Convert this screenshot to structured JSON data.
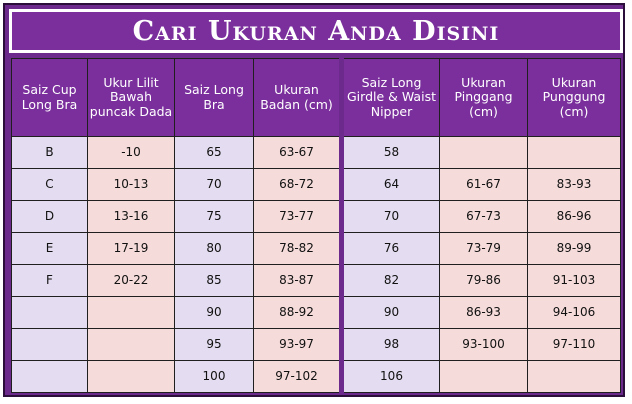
{
  "title": "Cari Ukuran Anda Disini",
  "colors": {
    "header_purple": "#7a2f9c",
    "frame_purple": "#6b2a8c",
    "lavender": "#e4dcf0",
    "pink": "#f5dcda"
  },
  "headers": [
    "Saiz Cup Long Bra",
    "Ukur Lilit Bawah puncak Dada",
    "Saiz Long Bra",
    "Ukuran Badan (cm)",
    "Saiz Long Girdle & Waist Nipper",
    "Ukuran Pinggang (cm)",
    "Ukuran Punggung (cm)"
  ],
  "rows": [
    [
      "B",
      "-10",
      "65",
      "63-67",
      "58",
      "",
      ""
    ],
    [
      "C",
      "10-13",
      "70",
      "68-72",
      "64",
      "61-67",
      "83-93"
    ],
    [
      "D",
      "13-16",
      "75",
      "73-77",
      "70",
      "67-73",
      "86-96"
    ],
    [
      "E",
      "17-19",
      "80",
      "78-82",
      "76",
      "73-79",
      "89-99"
    ],
    [
      "F",
      "20-22",
      "85",
      "83-87",
      "82",
      "79-86",
      "91-103"
    ],
    [
      "",
      "",
      "90",
      "88-92",
      "90",
      "86-93",
      "94-106"
    ],
    [
      "",
      "",
      "95",
      "93-97",
      "98",
      "93-100",
      "97-110"
    ],
    [
      "",
      "",
      "100",
      "97-102",
      "106",
      "",
      ""
    ]
  ]
}
